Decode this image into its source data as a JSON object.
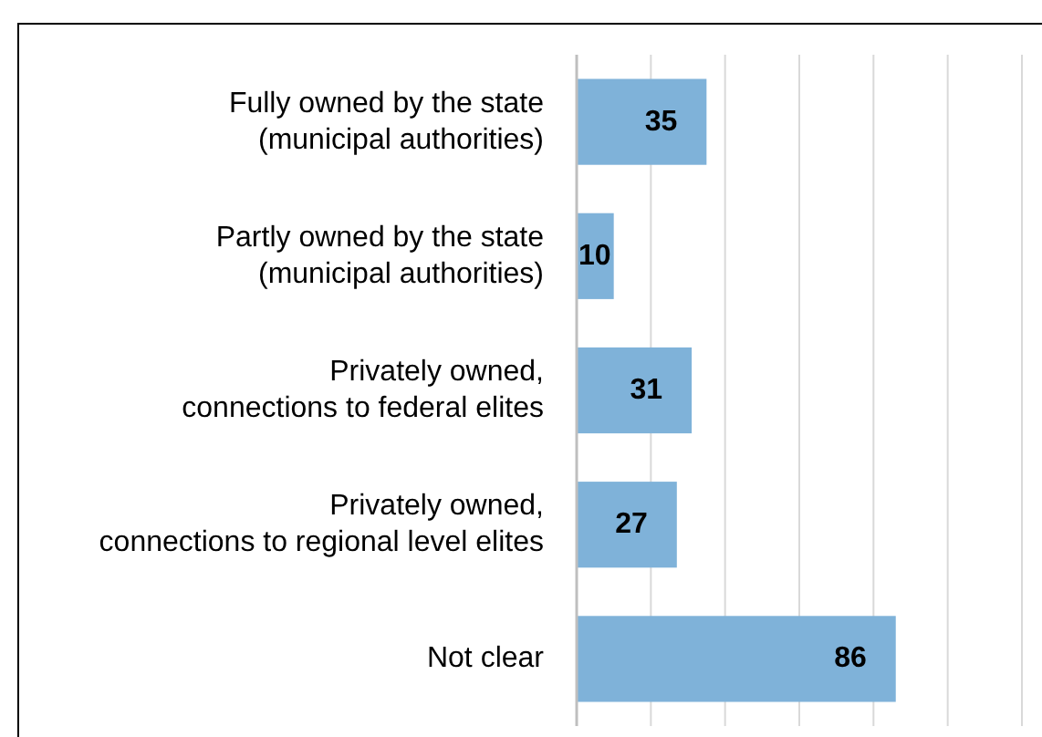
{
  "chart_data": {
    "type": "bar",
    "orientation": "horizontal",
    "categories": [
      "Fully owned by the state (municipal authorities)",
      "Partly owned by the state (municipal authorities)",
      "Privately owned, connections to federal elites",
      "Privately owned, connections to regional level elites",
      "Not clear"
    ],
    "values": [
      35,
      10,
      31,
      27,
      86
    ],
    "color": "#7fb2d9",
    "xlim": [
      0,
      120
    ],
    "xticks": [
      {
        "value": 0,
        "label": null
      },
      {
        "value": 20,
        "label": null
      },
      {
        "value": 40,
        "label": null
      },
      {
        "value": 60,
        "label": null
      },
      {
        "value": 80,
        "label": null
      },
      {
        "value": 100,
        "label": null
      },
      {
        "value": 120,
        "label": null
      }
    ],
    "grid": "x",
    "tick_labels": "y",
    "data_labels": true
  }
}
